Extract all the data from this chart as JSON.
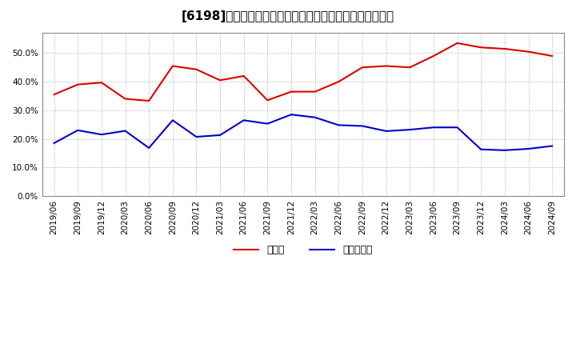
{
  "title": "[6198]　現須金、有利子負債の総資産に対する比率の推移",
  "x_labels": [
    "2019/06",
    "2019/09",
    "2019/12",
    "2020/03",
    "2020/06",
    "2020/09",
    "2020/12",
    "2021/03",
    "2021/06",
    "2021/09",
    "2021/12",
    "2022/03",
    "2022/06",
    "2022/09",
    "2022/12",
    "2023/03",
    "2023/06",
    "2023/09",
    "2023/12",
    "2024/03",
    "2024/06",
    "2024/09"
  ],
  "cash_values": [
    0.355,
    0.39,
    0.397,
    0.34,
    0.333,
    0.455,
    0.443,
    0.405,
    0.42,
    0.335,
    0.365,
    0.365,
    0.4,
    0.45,
    0.455,
    0.45,
    0.49,
    0.535,
    0.52,
    0.515,
    0.505,
    0.49
  ],
  "debt_values": [
    0.185,
    0.23,
    0.215,
    0.228,
    0.168,
    0.265,
    0.207,
    0.213,
    0.265,
    0.253,
    0.285,
    0.275,
    0.248,
    0.245,
    0.227,
    0.232,
    0.24,
    0.24,
    0.163,
    0.16,
    0.165,
    0.175
  ],
  "cash_color": "#dd0000",
  "debt_color": "#0000cc",
  "background_color": "#ffffff",
  "plot_bg_color": "#ffffff",
  "grid_color": "#aaaaaa",
  "ylim": [
    0.0,
    0.57
  ],
  "yticks": [
    0.0,
    0.1,
    0.2,
    0.3,
    0.4,
    0.5
  ],
  "legend_cash": "現須金",
  "legend_debt": "有利子負債",
  "title_fontsize": 11,
  "tick_fontsize": 7.5,
  "legend_fontsize": 9
}
